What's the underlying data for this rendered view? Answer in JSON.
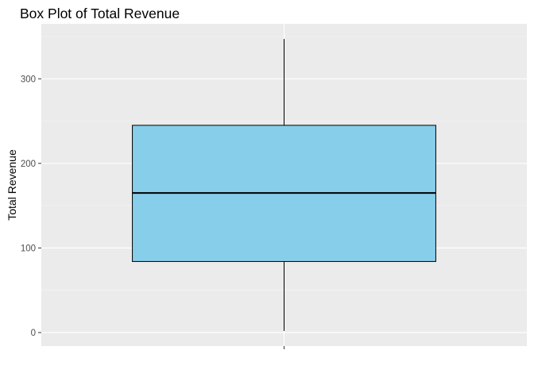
{
  "chart_data": {
    "type": "box",
    "title": "Box Plot of Total Revenue",
    "xlabel": "",
    "ylabel": "Total Revenue",
    "ylim": [
      -16,
      365
    ],
    "y_ticks": [
      0,
      100,
      200,
      300
    ],
    "y_tick_labels": [
      "0",
      "100",
      "200",
      "300"
    ],
    "box": {
      "min": 2,
      "q1": 84,
      "median": 165,
      "q3": 245,
      "max": 347
    },
    "grid": true,
    "legend": "none",
    "colors": {
      "panel": "#EBEBEB",
      "grid_major": "#FFFFFF",
      "grid_minor": "#F5F5F5",
      "box_fill": "#87CEEB",
      "box_stroke": "#000000"
    }
  }
}
